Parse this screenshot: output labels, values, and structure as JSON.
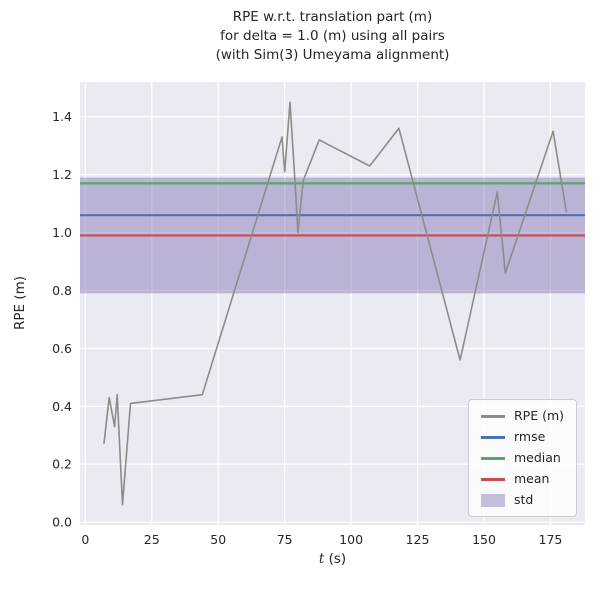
{
  "title": {
    "lines": [
      "RPE w.r.t. translation part (m)",
      "for delta = 1.0 (m) using all pairs",
      "(with Sim(3) Umeyama alignment)"
    ]
  },
  "axes": {
    "xlabel_var": "t",
    "xlabel_unit": " (s)",
    "ylabel": "RPE (m)"
  },
  "chart_data": {
    "type": "line",
    "title": "RPE w.r.t. translation part (m)\nfor delta = 1.0 (m) using all pairs\n(with Sim(3) Umeyama alignment)",
    "xlabel": "t (s)",
    "ylabel": "RPE (m)",
    "xlim": [
      -2,
      188
    ],
    "ylim": [
      -0.01,
      1.52
    ],
    "grid": true,
    "background": "#eaeaf2",
    "gridcolor": "#ffffff",
    "xticks": [
      0,
      25,
      50,
      75,
      100,
      125,
      150,
      175
    ],
    "xticklabels": [
      "0",
      "25",
      "50",
      "75",
      "100",
      "125",
      "150",
      "175"
    ],
    "yticks": [
      0.0,
      0.2,
      0.4,
      0.6,
      0.8,
      1.0,
      1.2,
      1.4
    ],
    "yticklabels": [
      "0.0",
      "0.2",
      "0.4",
      "0.6",
      "0.8",
      "1.0",
      "1.2",
      "1.4"
    ],
    "series": [
      {
        "name": "RPE (m)",
        "color": "#8c8c8c",
        "x": [
          7,
          9,
          11,
          12,
          14,
          17,
          44,
          74,
          75,
          77,
          79,
          80,
          82,
          88,
          107,
          118,
          141,
          155,
          158,
          176,
          181
        ],
        "y": [
          0.27,
          0.43,
          0.33,
          0.44,
          0.06,
          0.41,
          0.44,
          1.33,
          1.21,
          1.45,
          1.16,
          1.0,
          1.18,
          1.32,
          1.23,
          1.36,
          0.56,
          1.14,
          0.86,
          1.35,
          1.07
        ]
      }
    ],
    "stats": {
      "rmse": {
        "value": 1.06,
        "color": "#4c72b0"
      },
      "median": {
        "value": 1.17,
        "color": "#55a868"
      },
      "mean": {
        "value": 0.99,
        "color": "#c44e52"
      },
      "std": {
        "value": 0.2,
        "band_low": 0.79,
        "band_high": 1.19,
        "color": "#8172b2",
        "opacity": 0.45
      }
    },
    "legend": {
      "position": "lower right",
      "items": [
        {
          "label": "RPE (m)",
          "type": "line",
          "color": "#8c8c8c"
        },
        {
          "label": "rmse",
          "type": "line",
          "color": "#4c72b0"
        },
        {
          "label": "median",
          "type": "line",
          "color": "#55a868"
        },
        {
          "label": "mean",
          "type": "line",
          "color": "#c44e52"
        },
        {
          "label": "std",
          "type": "patch",
          "color": "#8172b2",
          "opacity": 0.45
        }
      ]
    }
  }
}
